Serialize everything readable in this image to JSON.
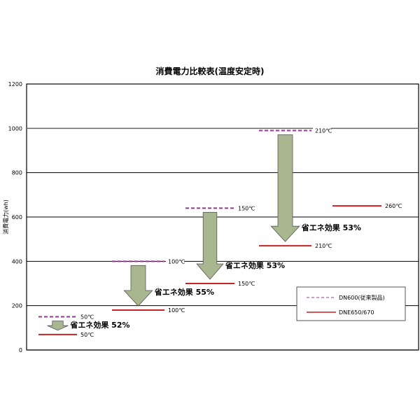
{
  "chart_data": {
    "type": "line",
    "title": "消費電力比較表(温度安定時)",
    "ylabel": "消費電力(wh)",
    "xlabel": "",
    "ylim": [
      0,
      1200
    ],
    "yticks": [
      "0",
      "200",
      "400",
      "600",
      "800",
      "1000",
      "1200"
    ],
    "grid": true,
    "legend_placement": "bottom-right",
    "series": [
      {
        "name": "DN600(従来製品)",
        "style": "dashed",
        "color": "#993399",
        "values": [
          150,
          400,
          640,
          990
        ],
        "labels": [
          "50℃",
          "100℃",
          "150℃",
          "210℃"
        ]
      },
      {
        "name": "DNE650/670",
        "style": "solid",
        "color": "#cc2222",
        "values": [
          70,
          180,
          300,
          470,
          650
        ],
        "labels": [
          "50℃",
          "100℃",
          "150℃",
          "210℃",
          "260℃"
        ]
      }
    ],
    "annotations": [
      "省エネ効果 52%",
      "省エネ効果 55%",
      "省エネ効果 53%",
      "省エネ効果 53%"
    ],
    "arrow_color": "#a9b791"
  }
}
